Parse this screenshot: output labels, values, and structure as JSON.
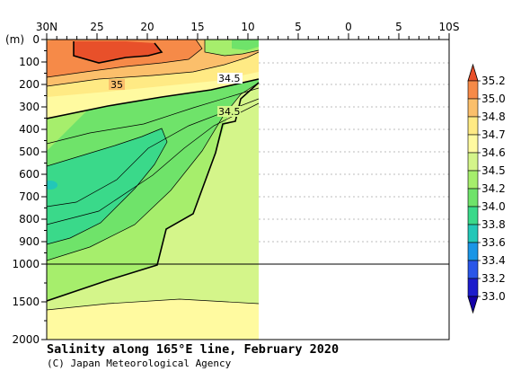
{
  "chart_data": {
    "type": "contour-section",
    "title": "Salinity along 165°E line, February 2020",
    "credit": "(C) Japan Meteorological Agency",
    "x_tick_labels": [
      "30N",
      "25",
      "20",
      "15",
      "10",
      "5",
      "0",
      "5",
      "10S"
    ],
    "xlim": [
      30,
      -10
    ],
    "y_axis_unit_label": "(m)",
    "y_tick_labels_upper": [
      "0",
      "100",
      "200",
      "300",
      "400",
      "500",
      "600",
      "700",
      "800",
      "900",
      "1000"
    ],
    "y_tick_labels_lower": [
      "1500",
      "2000"
    ],
    "ylim": [
      0,
      2000
    ],
    "y_scale_break": 1000,
    "data_extent_lat": [
      30,
      9.5
    ],
    "colorbar": {
      "levels": [
        "35.2",
        "35.0",
        "34.8",
        "34.7",
        "34.6",
        "34.5",
        "34.2",
        "34.0",
        "33.8",
        "33.6",
        "33.4",
        "33.2",
        "33.0"
      ],
      "colors": [
        "#e8502a",
        "#f68a48",
        "#fbbf6b",
        "#ffea84",
        "#fffaa0",
        "#d4f58a",
        "#a6ee6c",
        "#6fe36a",
        "#3ad98a",
        "#22c7b8",
        "#1a95e6",
        "#2a56e8",
        "#1c1ccc",
        "#1400a8"
      ]
    },
    "contour_labels": [
      "35",
      "34.5",
      "34.5"
    ]
  }
}
